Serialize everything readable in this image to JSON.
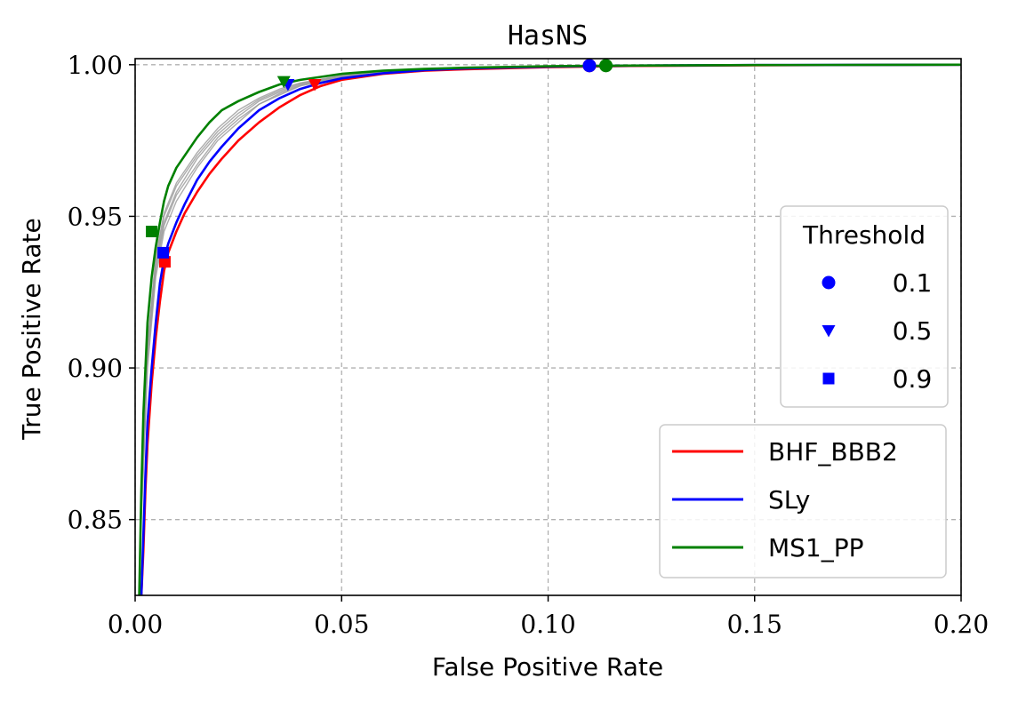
{
  "chart_data": {
    "type": "line",
    "title": "HasNS",
    "xlabel": "False Positive Rate",
    "ylabel": "True Positive Rate",
    "xlim": [
      0.0,
      0.2
    ],
    "ylim": [
      0.825,
      1.002
    ],
    "xticks": [
      0.0,
      0.05,
      0.1,
      0.15,
      0.2
    ],
    "xtick_labels": [
      "0.00",
      "0.05",
      "0.10",
      "0.15",
      "0.20"
    ],
    "yticks": [
      0.85,
      0.9,
      0.95,
      1.0
    ],
    "ytick_labels": [
      "0.85",
      "0.90",
      "0.95",
      "1.00"
    ],
    "grid": true,
    "series": [
      {
        "name": "BHF_BBB2",
        "color": "#ff0000",
        "points": [
          [
            0.0015,
            0.825
          ],
          [
            0.002,
            0.84
          ],
          [
            0.0025,
            0.86
          ],
          [
            0.003,
            0.875
          ],
          [
            0.004,
            0.895
          ],
          [
            0.005,
            0.91
          ],
          [
            0.006,
            0.922
          ],
          [
            0.007,
            0.932
          ],
          [
            0.008,
            0.938
          ],
          [
            0.01,
            0.945
          ],
          [
            0.012,
            0.951
          ],
          [
            0.015,
            0.958
          ],
          [
            0.018,
            0.964
          ],
          [
            0.021,
            0.969
          ],
          [
            0.025,
            0.975
          ],
          [
            0.03,
            0.981
          ],
          [
            0.035,
            0.986
          ],
          [
            0.04,
            0.99
          ],
          [
            0.045,
            0.993
          ],
          [
            0.05,
            0.995
          ],
          [
            0.06,
            0.997
          ],
          [
            0.07,
            0.998
          ],
          [
            0.08,
            0.9985
          ],
          [
            0.1,
            0.9992
          ],
          [
            0.12,
            0.9996
          ],
          [
            0.15,
            0.9998
          ],
          [
            0.2,
            1.0
          ]
        ]
      },
      {
        "name": "SLy",
        "color": "#0000ff",
        "points": [
          [
            0.0015,
            0.825
          ],
          [
            0.002,
            0.845
          ],
          [
            0.0025,
            0.865
          ],
          [
            0.003,
            0.882
          ],
          [
            0.004,
            0.9
          ],
          [
            0.005,
            0.915
          ],
          [
            0.006,
            0.928
          ],
          [
            0.007,
            0.936
          ],
          [
            0.008,
            0.941
          ],
          [
            0.01,
            0.948
          ],
          [
            0.012,
            0.954
          ],
          [
            0.015,
            0.962
          ],
          [
            0.018,
            0.968
          ],
          [
            0.021,
            0.973
          ],
          [
            0.025,
            0.979
          ],
          [
            0.03,
            0.985
          ],
          [
            0.035,
            0.989
          ],
          [
            0.04,
            0.992
          ],
          [
            0.045,
            0.994
          ],
          [
            0.05,
            0.9955
          ],
          [
            0.06,
            0.9972
          ],
          [
            0.07,
            0.9982
          ],
          [
            0.08,
            0.9988
          ],
          [
            0.1,
            0.9994
          ],
          [
            0.12,
            0.9997
          ],
          [
            0.15,
            0.9999
          ],
          [
            0.2,
            1.0
          ]
        ]
      },
      {
        "name": "MS1_PP",
        "color": "#008000",
        "points": [
          [
            0.001,
            0.825
          ],
          [
            0.0015,
            0.86
          ],
          [
            0.002,
            0.885
          ],
          [
            0.0025,
            0.9
          ],
          [
            0.003,
            0.915
          ],
          [
            0.004,
            0.93
          ],
          [
            0.005,
            0.94
          ],
          [
            0.006,
            0.948
          ],
          [
            0.007,
            0.955
          ],
          [
            0.008,
            0.96
          ],
          [
            0.01,
            0.966
          ],
          [
            0.012,
            0.97
          ],
          [
            0.015,
            0.976
          ],
          [
            0.018,
            0.981
          ],
          [
            0.021,
            0.985
          ],
          [
            0.025,
            0.988
          ],
          [
            0.03,
            0.991
          ],
          [
            0.035,
            0.9935
          ],
          [
            0.04,
            0.995
          ],
          [
            0.045,
            0.996
          ],
          [
            0.05,
            0.997
          ],
          [
            0.06,
            0.998
          ],
          [
            0.07,
            0.9986
          ],
          [
            0.08,
            0.999
          ],
          [
            0.1,
            0.9995
          ],
          [
            0.12,
            0.9997
          ],
          [
            0.15,
            0.9999
          ],
          [
            0.2,
            1.0
          ]
        ]
      }
    ],
    "background_series": [
      {
        "color": "#999999",
        "points": [
          [
            0.0015,
            0.85
          ],
          [
            0.003,
            0.9
          ],
          [
            0.005,
            0.93
          ],
          [
            0.007,
            0.945
          ],
          [
            0.01,
            0.955
          ],
          [
            0.015,
            0.966
          ],
          [
            0.02,
            0.975
          ],
          [
            0.025,
            0.981
          ],
          [
            0.03,
            0.987
          ],
          [
            0.035,
            0.99
          ],
          [
            0.04,
            0.993
          ],
          [
            0.05,
            0.9958
          ],
          [
            0.07,
            0.9985
          ],
          [
            0.1,
            0.9994
          ],
          [
            0.15,
            0.9999
          ],
          [
            0.2,
            1.0
          ]
        ]
      },
      {
        "color": "#999999",
        "points": [
          [
            0.0015,
            0.855
          ],
          [
            0.003,
            0.905
          ],
          [
            0.005,
            0.934
          ],
          [
            0.007,
            0.948
          ],
          [
            0.01,
            0.958
          ],
          [
            0.015,
            0.969
          ],
          [
            0.02,
            0.977
          ],
          [
            0.025,
            0.983
          ],
          [
            0.03,
            0.988
          ],
          [
            0.035,
            0.991
          ],
          [
            0.04,
            0.9935
          ],
          [
            0.05,
            0.9962
          ],
          [
            0.07,
            0.9986
          ],
          [
            0.1,
            0.9995
          ],
          [
            0.15,
            0.9999
          ],
          [
            0.2,
            1.0
          ]
        ]
      },
      {
        "color": "#999999",
        "points": [
          [
            0.0015,
            0.86
          ],
          [
            0.003,
            0.908
          ],
          [
            0.005,
            0.937
          ],
          [
            0.007,
            0.951
          ],
          [
            0.01,
            0.961
          ],
          [
            0.015,
            0.971
          ],
          [
            0.02,
            0.979
          ],
          [
            0.025,
            0.985
          ],
          [
            0.03,
            0.989
          ],
          [
            0.035,
            0.992
          ],
          [
            0.04,
            0.994
          ],
          [
            0.05,
            0.9965
          ],
          [
            0.07,
            0.9987
          ],
          [
            0.1,
            0.9995
          ],
          [
            0.15,
            0.9999
          ],
          [
            0.2,
            1.0
          ]
        ]
      },
      {
        "color": "#999999",
        "points": [
          [
            0.0015,
            0.852
          ],
          [
            0.003,
            0.902
          ],
          [
            0.005,
            0.932
          ],
          [
            0.007,
            0.947
          ],
          [
            0.01,
            0.957
          ],
          [
            0.015,
            0.967
          ],
          [
            0.02,
            0.976
          ],
          [
            0.025,
            0.982
          ],
          [
            0.03,
            0.987
          ],
          [
            0.035,
            0.9905
          ],
          [
            0.04,
            0.9932
          ],
          [
            0.05,
            0.996
          ],
          [
            0.07,
            0.9985
          ],
          [
            0.1,
            0.9994
          ],
          [
            0.15,
            0.9999
          ],
          [
            0.2,
            1.0
          ]
        ]
      },
      {
        "color": "#999999",
        "points": [
          [
            0.0015,
            0.858
          ],
          [
            0.003,
            0.906
          ],
          [
            0.005,
            0.935
          ],
          [
            0.007,
            0.95
          ],
          [
            0.01,
            0.96
          ],
          [
            0.015,
            0.97
          ],
          [
            0.02,
            0.978
          ],
          [
            0.025,
            0.984
          ],
          [
            0.03,
            0.9885
          ],
          [
            0.035,
            0.9915
          ],
          [
            0.04,
            0.9938
          ],
          [
            0.05,
            0.9963
          ],
          [
            0.07,
            0.9986
          ],
          [
            0.1,
            0.9995
          ],
          [
            0.15,
            0.9999
          ],
          [
            0.2,
            1.0
          ]
        ]
      }
    ],
    "threshold_markers": [
      {
        "series": "BHF_BBB2",
        "threshold": "0.1",
        "shape": "circle",
        "x": 0.11,
        "y": 0.9997
      },
      {
        "series": "BHF_BBB2",
        "threshold": "0.5",
        "shape": "triangle",
        "x": 0.0435,
        "y": 0.9935
      },
      {
        "series": "BHF_BBB2",
        "threshold": "0.9",
        "shape": "square",
        "x": 0.0072,
        "y": 0.935
      },
      {
        "series": "SLy",
        "threshold": "0.1",
        "shape": "circle",
        "x": 0.11,
        "y": 0.9997
      },
      {
        "series": "SLy",
        "threshold": "0.5",
        "shape": "triangle",
        "x": 0.037,
        "y": 0.9935
      },
      {
        "series": "SLy",
        "threshold": "0.9",
        "shape": "square",
        "x": 0.0068,
        "y": 0.938
      },
      {
        "series": "MS1_PP",
        "threshold": "0.1",
        "shape": "circle",
        "x": 0.114,
        "y": 0.9997
      },
      {
        "series": "MS1_PP",
        "threshold": "0.5",
        "shape": "triangle",
        "x": 0.036,
        "y": 0.9945
      },
      {
        "series": "MS1_PP",
        "threshold": "0.9",
        "shape": "square",
        "x": 0.004,
        "y": 0.945
      }
    ],
    "threshold_legend": {
      "title": "Threshold",
      "placement": "center-right",
      "color": "#0000ff",
      "entries": [
        {
          "label": "0.1",
          "shape": "circle"
        },
        {
          "label": "0.5",
          "shape": "triangle"
        },
        {
          "label": "0.9",
          "shape": "square"
        }
      ]
    },
    "series_legend": {
      "placement": "lower-right",
      "entries": [
        "BHF_BBB2",
        "SLy",
        "MS1_PP"
      ]
    }
  }
}
